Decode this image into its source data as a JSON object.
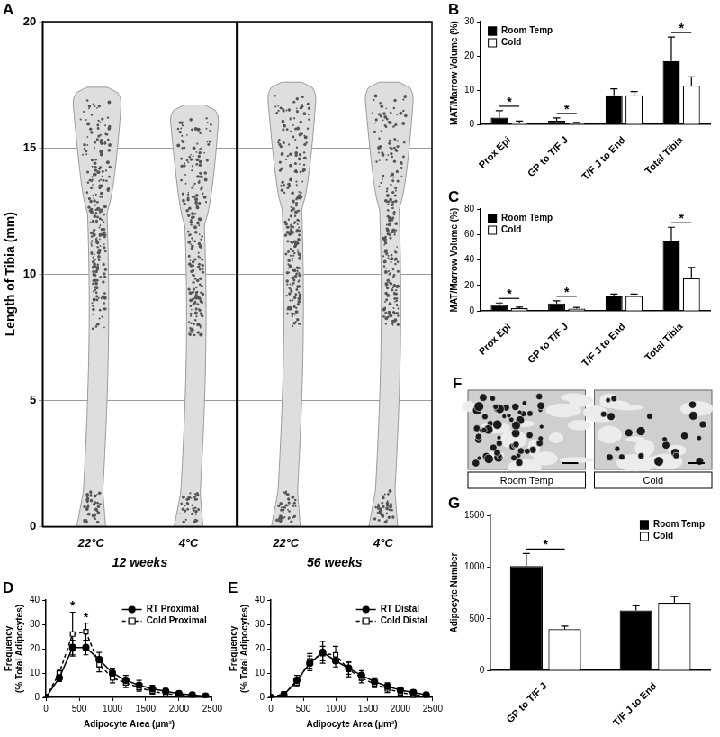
{
  "chart_data": [
    {
      "panel": "A",
      "type": "image",
      "categories": [
        "22°C",
        "4°C",
        "22°C",
        "4°C"
      ],
      "groups": [
        "12 weeks",
        "56 weeks"
      ],
      "values": [
        17.4,
        16.7,
        17.6,
        17.6
      ],
      "ylabel": "Length of Tibia (mm)",
      "ylim": [
        0,
        20
      ],
      "yticks": [
        0,
        5,
        10,
        15,
        20
      ],
      "grid": true
    },
    {
      "panel": "B",
      "type": "bar",
      "categories": [
        "Prox Epi",
        "GP to T/F J",
        "T/F J to End",
        "Total Tibia"
      ],
      "series": [
        {
          "name": "Room Temp",
          "color": "#000000",
          "values": [
            2.0,
            1.1,
            8.5,
            18.5
          ],
          "errors": [
            2.0,
            0.8,
            1.9,
            7.0
          ]
        },
        {
          "name": "Cold",
          "color": "#ffffff",
          "values": [
            0.6,
            0.3,
            8.5,
            11.3
          ],
          "errors": [
            0.4,
            0.3,
            1.1,
            2.6
          ]
        }
      ],
      "ylabel": "MAT/Marrow Volume (%)",
      "ylim": [
        0,
        30
      ],
      "yticks": [
        0,
        10,
        20,
        30
      ],
      "grid": false,
      "legend": "top-left",
      "annotations": [
        {
          "text": "*",
          "category": "Prox Epi"
        },
        {
          "text": "*",
          "category": "GP to T/F J"
        },
        {
          "text": "*",
          "category": "Total Tibia"
        }
      ]
    },
    {
      "panel": "C",
      "type": "bar",
      "categories": [
        "Prox Epi",
        "GP to T/F J",
        "T/F J to End",
        "Total Tibia"
      ],
      "series": [
        {
          "name": "Room Temp",
          "color": "#000000",
          "values": [
            4.8,
            6.0,
            11.5,
            54.7
          ],
          "errors": [
            1.5,
            2.0,
            1.8,
            11.0
          ]
        },
        {
          "name": "Cold",
          "color": "#ffffff",
          "values": [
            2.2,
            1.8,
            11.8,
            25.7
          ],
          "errors": [
            0.8,
            1.0,
            1.5,
            8.5
          ]
        }
      ],
      "ylabel": "MAT/Marrow Volume (%)",
      "ylim": [
        0,
        80
      ],
      "yticks": [
        0,
        20,
        40,
        60,
        80
      ],
      "grid": false,
      "legend": "top-left",
      "annotations": [
        {
          "text": "*",
          "category": "Prox Epi"
        },
        {
          "text": "*",
          "category": "GP to T/F J"
        },
        {
          "text": "*",
          "category": "Total Tibia"
        }
      ]
    },
    {
      "panel": "D",
      "type": "line",
      "x": [
        0,
        200,
        400,
        600,
        800,
        1000,
        1200,
        1400,
        1600,
        1800,
        2000,
        2200,
        2400
      ],
      "series": [
        {
          "name": "RT Proximal",
          "color": "#000000",
          "marker": "filled-circle",
          "line_style": "solid",
          "values": [
            0,
            8,
            20.5,
            20.5,
            15.5,
            10,
            7,
            5,
            3.5,
            2.5,
            1.5,
            1,
            0.5
          ],
          "errors": [
            0,
            1.5,
            3,
            3,
            3,
            2,
            2,
            2,
            1.5,
            1.2,
            1,
            0.8,
            0.5
          ]
        },
        {
          "name": "Cold Proximal",
          "color": "#000000",
          "marker": "open-square",
          "line_style": "dashed",
          "values": [
            0,
            10,
            26,
            27,
            13.5,
            8,
            6,
            4,
            2.5,
            1.5,
            1,
            0.5,
            0.3
          ],
          "errors": [
            0,
            1.5,
            9,
            3.5,
            3,
            2,
            2,
            1.5,
            1.2,
            1,
            0.8,
            0.5,
            0.3
          ]
        }
      ],
      "xlabel": "Adipocyte Area (μm²)",
      "ylabel": [
        "Frequency",
        "(% Total Adipocytes)"
      ],
      "xlim": [
        0,
        2500
      ],
      "xticks": [
        0,
        500,
        1000,
        1500,
        2000,
        2500
      ],
      "ylim": [
        0,
        40
      ],
      "yticks": [
        0,
        10,
        20,
        30,
        40
      ],
      "grid": false,
      "legend": "top-right",
      "annotations": [
        {
          "text": "*",
          "x": 400,
          "series": "Cold Proximal"
        },
        {
          "text": "*",
          "x": 600,
          "series": "Cold Proximal"
        }
      ]
    },
    {
      "panel": "E",
      "type": "line",
      "x": [
        0,
        200,
        400,
        600,
        800,
        1000,
        1200,
        1400,
        1600,
        1800,
        2000,
        2200,
        2400
      ],
      "series": [
        {
          "name": "RT Distal",
          "color": "#000000",
          "marker": "filled-circle",
          "line_style": "solid",
          "values": [
            0,
            1,
            7,
            14,
            18.5,
            15,
            12,
            9,
            6.5,
            4.5,
            3,
            2,
            1
          ],
          "errors": [
            0,
            0.5,
            2,
            3,
            4.5,
            2.5,
            2.5,
            2,
            1.5,
            1.5,
            1,
            1,
            0.5
          ]
        },
        {
          "name": "Cold Distal",
          "color": "#000000",
          "marker": "open-square",
          "line_style": "dashed",
          "values": [
            0,
            1.5,
            6,
            15,
            18,
            17.5,
            11.5,
            8,
            5.5,
            3.5,
            2,
            1,
            0.5
          ],
          "errors": [
            0,
            0.5,
            1.5,
            3,
            3,
            3.5,
            3,
            2,
            1.5,
            1.5,
            1,
            1,
            0.5
          ]
        }
      ],
      "xlabel": "Adipocyte Area (μm²)",
      "ylabel": [
        "Frequency",
        "(% Total Adipocytes)"
      ],
      "xlim": [
        0,
        2500
      ],
      "xticks": [
        0,
        500,
        1000,
        1500,
        2000,
        2500
      ],
      "ylim": [
        0,
        40
      ],
      "yticks": [
        0,
        10,
        20,
        30,
        40
      ],
      "grid": false,
      "legend": "top-right"
    },
    {
      "panel": "G",
      "type": "bar",
      "categories": [
        "GP to T/F J",
        "T/F J to End"
      ],
      "series": [
        {
          "name": "Room Temp",
          "color": "#000000",
          "values": [
            1010,
            580
          ],
          "errors": [
            120,
            45
          ]
        },
        {
          "name": "Cold",
          "color": "#ffffff",
          "values": [
            400,
            655
          ],
          "errors": [
            30,
            60
          ]
        }
      ],
      "ylabel": "Adipocyte Number",
      "ylim": [
        0,
        1500
      ],
      "yticks": [
        0,
        500,
        1000,
        1500
      ],
      "grid": false,
      "legend": "top-right",
      "annotations": [
        {
          "text": "*",
          "category": "GP to T/F J"
        }
      ]
    }
  ],
  "images": {
    "panel": "F",
    "captions": [
      "Room Temp",
      "Cold"
    ]
  }
}
